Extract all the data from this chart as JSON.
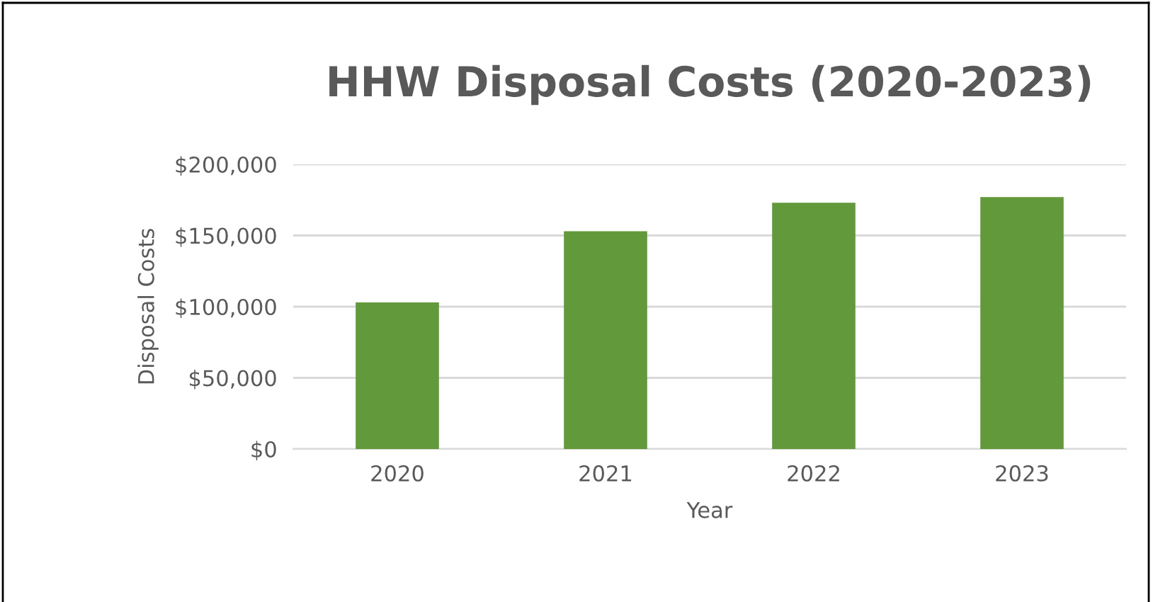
{
  "chart_data": {
    "type": "bar",
    "title": "HHW Disposal Costs (2020-2023)",
    "xlabel": "Year",
    "ylabel": "Disposal Costs",
    "categories": [
      "2020",
      "2021",
      "2022",
      "2023"
    ],
    "values": [
      103000,
      153000,
      173000,
      177000
    ],
    "color": "#62993a",
    "ylim": [
      0,
      200000
    ],
    "yticks": [
      {
        "value": 0,
        "label": "$0"
      },
      {
        "value": 50000,
        "label": "$50,000"
      },
      {
        "value": 100000,
        "label": "$100,000"
      },
      {
        "value": 150000,
        "label": "$150,000"
      },
      {
        "value": 200000,
        "label": "$200,000"
      }
    ],
    "grid": "y"
  }
}
